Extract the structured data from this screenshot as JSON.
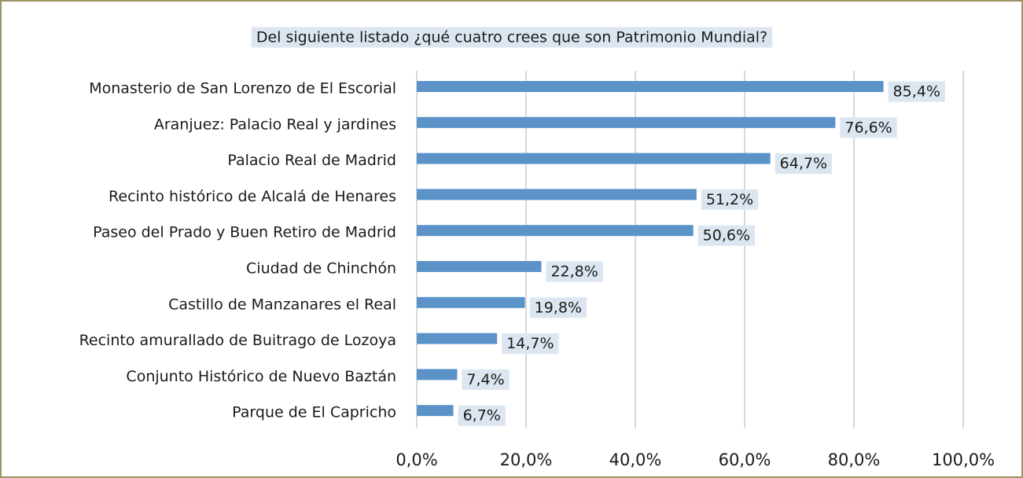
{
  "chart_data": {
    "type": "bar",
    "orientation": "horizontal",
    "title": "Del siguiente listado ¿qué cuatro crees que son Patrimonio Mundial?",
    "categories": [
      "Monasterio de San Lorenzo de El Escorial",
      "Aranjuez: Palacio Real y jardines",
      "Palacio Real de Madrid",
      "Recinto histórico de Alcalá de Henares",
      "Paseo del Prado y Buen Retiro de Madrid",
      "Ciudad de Chinchón",
      "Castillo de Manzanares el Real",
      "Recinto amurallado de Buitrago de Lozoya",
      "Conjunto Histórico de Nuevo Baztán",
      "Parque de El Capricho"
    ],
    "values": [
      85.4,
      76.6,
      64.7,
      51.2,
      50.6,
      22.8,
      19.8,
      14.7,
      7.4,
      6.7
    ],
    "value_labels": [
      "85,4%",
      "76,6%",
      "64,7%",
      "51,2%",
      "50,6%",
      "22,8%",
      "19,8%",
      "14,7%",
      "7,4%",
      "6,7%"
    ],
    "color": "#5b93c9",
    "xlim": [
      0,
      100
    ],
    "xticks": [
      {
        "value": 0,
        "label": "0,0%"
      },
      {
        "value": 20,
        "label": "20,0%"
      },
      {
        "value": 40,
        "label": "40,0%"
      },
      {
        "value": 60,
        "label": "60,0%"
      },
      {
        "value": 80,
        "label": "80,0%"
      },
      {
        "value": 100,
        "label": "100,0%"
      }
    ],
    "grid": true
  }
}
